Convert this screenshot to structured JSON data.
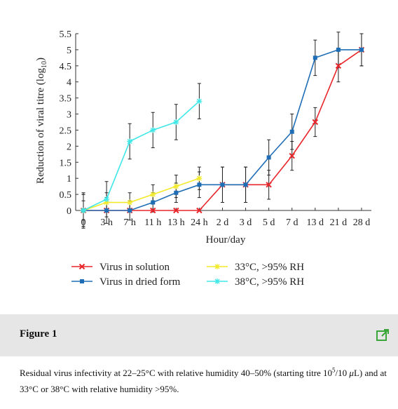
{
  "chart_data": {
    "type": "line",
    "ylabel": [
      "Reduction of viral titre (log",
      "10",
      ")"
    ],
    "xlabel": "Hour/day",
    "categories": [
      "0",
      "3 h",
      "7 h",
      "11 h",
      "13 h",
      "24 h",
      "2 d",
      "3 d",
      "5 d",
      "7 d",
      "13 d",
      "21 d",
      "28 d"
    ],
    "ylim": [
      0,
      5.5
    ],
    "yticks": [
      0,
      0.5,
      1,
      1.5,
      2,
      2.5,
      3,
      3.5,
      4,
      4.5,
      5,
      5.5
    ],
    "series": [
      {
        "name": "Virus in solution",
        "color": "#e8262b",
        "marker": "x",
        "values": [
          0,
          0,
          0,
          0,
          0,
          0,
          0.8,
          0.8,
          0.8,
          1.7,
          2.75,
          4.5,
          5.0
        ],
        "errors": [
          0.55,
          null,
          null,
          null,
          null,
          null,
          0.55,
          0.55,
          0.45,
          0.45,
          0.45,
          0.5,
          0.5
        ]
      },
      {
        "name": "Virus in dried form",
        "color": "#1f6eb5",
        "marker": "square",
        "values": [
          0,
          0,
          0,
          0.25,
          0.55,
          0.8,
          0.8,
          0.8,
          1.65,
          2.45,
          4.75,
          5.0,
          5.0
        ],
        "errors": [
          0.5,
          0.4,
          0.3,
          0.3,
          0.3,
          0.4,
          0.55,
          0.55,
          0.55,
          0.55,
          0.55,
          0.55,
          0.5
        ]
      },
      {
        "name": "33°C, >95% RH",
        "color": "#f2ea2a",
        "marker": "star",
        "values": [
          0,
          0.25,
          0.25,
          0.5,
          0.75,
          1.0,
          null,
          null,
          null,
          null,
          null,
          null,
          null
        ],
        "errors": [
          0.3,
          0.3,
          0.3,
          0.3,
          0.35,
          0.35,
          null,
          null,
          null,
          null,
          null,
          null,
          null
        ]
      },
      {
        "name": "38°C, >95% RH",
        "color": "#3fe8e8",
        "marker": "star",
        "values": [
          0,
          0.35,
          2.15,
          2.5,
          2.75,
          3.4,
          null,
          null,
          null,
          null,
          null,
          null,
          null
        ],
        "errors": [
          0.5,
          0.55,
          0.55,
          0.55,
          0.55,
          0.55,
          null,
          null,
          null,
          null,
          null,
          null,
          null
        ]
      }
    ]
  },
  "figure_label": "Figure 1",
  "caption": [
    "Residual virus infectivity at 22–25°C with relative humidity 40–50% (starting titre 10",
    "5",
    "/10 ",
    "μ",
    "L) and at 33°C or 38°C with relative humidity >95%."
  ]
}
